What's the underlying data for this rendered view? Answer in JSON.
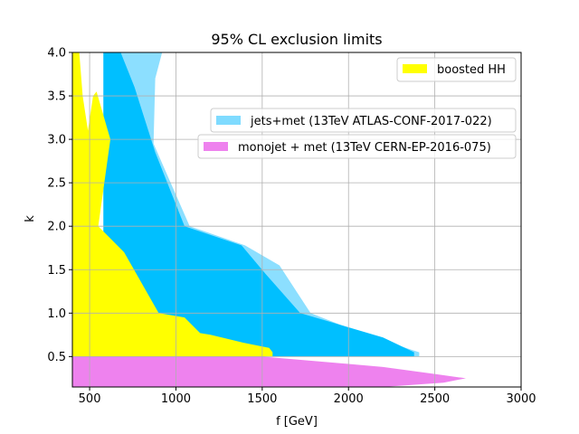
{
  "chart_data": {
    "type": "area",
    "title": "95% CL exclusion limits",
    "xlabel": "f [GeV]",
    "ylabel": "k",
    "xlim": [
      400,
      3000
    ],
    "ylim": [
      0.15,
      4.0
    ],
    "xticks": [
      500,
      1000,
      1500,
      2000,
      2500,
      3000
    ],
    "yticks": [
      0.5,
      1.0,
      1.5,
      2.0,
      2.5,
      3.0,
      3.5,
      4.0
    ],
    "grid": true,
    "series": [
      {
        "name": "jets+met (13TeV ATLAS-CONF-2017-022)",
        "color": "#7fdbff",
        "opacity": 0.9,
        "polygon": [
          [
            680,
            4.0
          ],
          [
            920,
            4.0
          ],
          [
            880,
            3.7
          ],
          [
            870,
            2.95
          ],
          [
            1080,
            2.0
          ],
          [
            1400,
            1.78
          ],
          [
            1600,
            1.55
          ],
          [
            1780,
            1.0
          ],
          [
            2100,
            0.75
          ],
          [
            2410,
            0.55
          ],
          [
            2410,
            0.5
          ],
          [
            580,
            0.5
          ],
          [
            580,
            4.0
          ]
        ]
      },
      {
        "name": "",
        "color": "#00bfff",
        "opacity": 1.0,
        "polygon": [
          [
            680,
            4.0
          ],
          [
            760,
            3.6
          ],
          [
            880,
            2.85
          ],
          [
            1050,
            2.0
          ],
          [
            1380,
            1.78
          ],
          [
            1520,
            1.45
          ],
          [
            1720,
            1.0
          ],
          [
            2200,
            0.72
          ],
          [
            2380,
            0.55
          ],
          [
            2380,
            0.5
          ],
          [
            580,
            0.5
          ],
          [
            580,
            4.0
          ]
        ]
      },
      {
        "name": "boosted HH",
        "color": "#ffff00",
        "opacity": 1.0,
        "polygon": [
          [
            400,
            4.0
          ],
          [
            440,
            4.0
          ],
          [
            460,
            3.5
          ],
          [
            490,
            3.1
          ],
          [
            520,
            3.5
          ],
          [
            540,
            3.55
          ],
          [
            620,
            3.0
          ],
          [
            550,
            2.0
          ],
          [
            700,
            1.7
          ],
          [
            900,
            1.0
          ],
          [
            1050,
            0.95
          ],
          [
            1140,
            0.77
          ],
          [
            1200,
            0.75
          ],
          [
            1390,
            0.66
          ],
          [
            1540,
            0.6
          ],
          [
            1560,
            0.55
          ],
          [
            1560,
            0.5
          ],
          [
            400,
            0.5
          ]
        ]
      },
      {
        "name": "monojet + met (13TeV CERN-EP-2016-075)",
        "color": "#ee82ee",
        "opacity": 1.0,
        "polygon": [
          [
            400,
            0.5
          ],
          [
            1500,
            0.5
          ],
          [
            1800,
            0.45
          ],
          [
            2200,
            0.38
          ],
          [
            2500,
            0.3
          ],
          [
            2680,
            0.25
          ],
          [
            2550,
            0.2
          ],
          [
            2200,
            0.15
          ],
          [
            400,
            0.15
          ]
        ]
      }
    ],
    "legend": [
      {
        "label": "boosted HH",
        "color": "#ffff00",
        "position": "top-right"
      },
      {
        "label": "jets+met (13TeV ATLAS-CONF-2017-022)",
        "color": "#7fdbff",
        "position": "right"
      },
      {
        "label": "monojet + met (13TeV CERN-EP-2016-075)",
        "color": "#ee82ee",
        "position": "right"
      }
    ]
  }
}
